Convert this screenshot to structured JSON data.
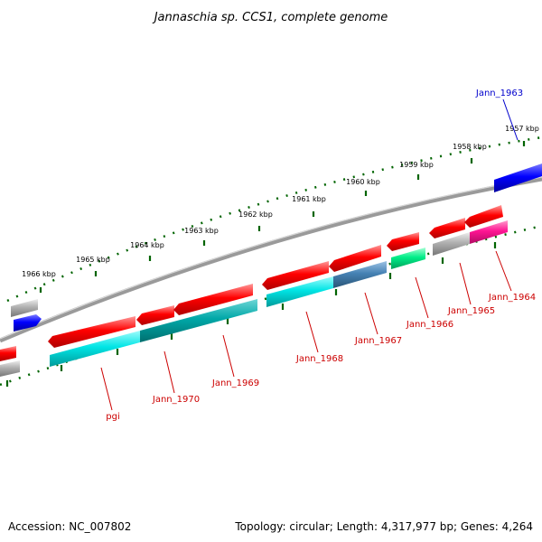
{
  "title": "Jannaschia sp. CCS1, complete genome",
  "footer": {
    "accession": "Accession: NC_007802",
    "summary": "Topology: circular; Length: 4,317,977 bp; Genes: 4,264"
  },
  "ticks": [
    "1957 kbp",
    "1958 kbp",
    "1959 kbp",
    "1960 kbp",
    "1961 kbp",
    "1962 kbp",
    "1963 kbp",
    "1964 kbp",
    "1965 kbp",
    "1966 kbp"
  ],
  "gene_labels": {
    "jann_1963": "Jann_1963",
    "jann_1964": "Jann_1964",
    "jann_1965": "Jann_1965",
    "jann_1966": "Jann_1966",
    "jann_1967": "Jann_1967",
    "jann_1968": "Jann_1968",
    "jann_1969": "Jann_1969",
    "jann_1970": "Jann_1970",
    "pgi": "pgi"
  },
  "colors": {
    "gene_red": "#ff0000",
    "gene_blue": "#0000ff",
    "gene_cyan": "#00e5e5",
    "gene_teal": "#00a8a8",
    "gene_steel": "#4682b4",
    "gene_green": "#00ee88",
    "gene_magenta": "#ff1493",
    "gene_gray": "#b0b0b0",
    "backbone": "#808080",
    "tick_green": "#006400",
    "label_red": "#cc0000",
    "label_blue": "#0000cc"
  }
}
